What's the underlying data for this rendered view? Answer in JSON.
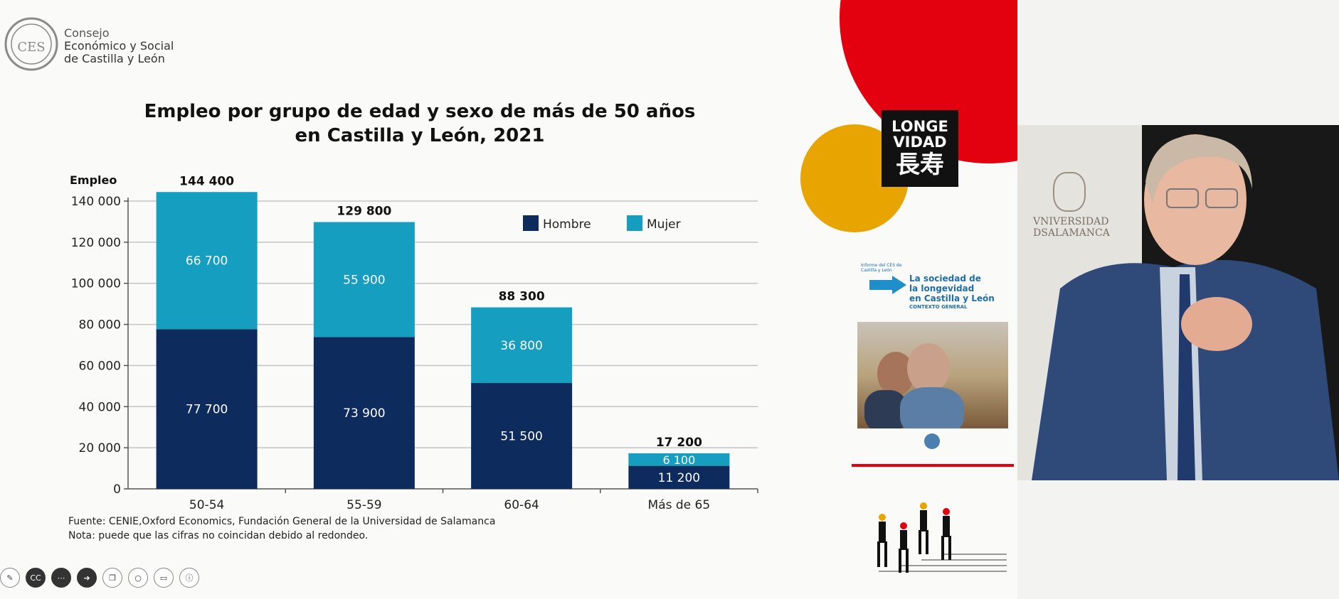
{
  "header": {
    "org_line1": "Consejo",
    "org_line2": "Económico y Social",
    "org_line3": "de Castilla y León",
    "logo_text": "CES"
  },
  "chart_data": {
    "type": "bar",
    "stacked": true,
    "title_line1": "Empleo por grupo de edad y sexo de más de 50 años",
    "title_line2": "en Castilla y León, 2021",
    "ylabel": "Empleo",
    "ylim": [
      0,
      140000
    ],
    "yticks": [
      "0",
      "20 000",
      "40 000",
      "60 000",
      "80 000",
      "100 000",
      "120 000",
      "140 000"
    ],
    "grid": true,
    "legend_position": "top-right",
    "categories": [
      "50-54",
      "55-59",
      "60-64",
      "Más de 65"
    ],
    "series": [
      {
        "name": "Hombre",
        "color": "#0d2b5c",
        "values": [
          77700,
          73900,
          51500,
          11200
        ],
        "labels": [
          "77 700",
          "73 900",
          "51 500",
          "11 200"
        ]
      },
      {
        "name": "Mujer",
        "color": "#159ec0",
        "values": [
          66700,
          55900,
          36800,
          6100
        ],
        "labels": [
          "66 700",
          "55 900",
          "36 800",
          "6 100"
        ]
      }
    ],
    "totals": [
      144400,
      129800,
      88300,
      17200
    ],
    "total_labels": [
      "144 400",
      "129 800",
      "88 300",
      "17 200"
    ]
  },
  "notes": {
    "source": "Fuente: CENIE,Oxford Economics, Fundación General de la Universidad de Salamanca",
    "note": "Nota: puede que las cifras no coincidan debido al redondeo."
  },
  "side_panel": {
    "badge_line1": "LONGE",
    "badge_line2": "VIDAD",
    "badge_kanji": "長寿",
    "cover_small": "Informe del CES de Castilla y León",
    "cover_title_1": "La sociedad de",
    "cover_title_2": "la longevidad",
    "cover_title_3": "en Castilla y León",
    "cover_subtitle": "CONTEXTO GENERAL",
    "colors": {
      "red": "#e3000f",
      "yellow": "#e8a400",
      "black": "#111111"
    }
  },
  "video": {
    "backdrop_line1": "VNIVERSIDAD",
    "backdrop_line2": "DSALAMANCA"
  },
  "toolbar": {
    "buttons": [
      "pencil-icon",
      "cc-icon",
      "more-icon",
      "next-icon",
      "layers-icon",
      "zoom-icon",
      "camera-icon",
      "info-icon"
    ],
    "cc_label": "CC"
  }
}
